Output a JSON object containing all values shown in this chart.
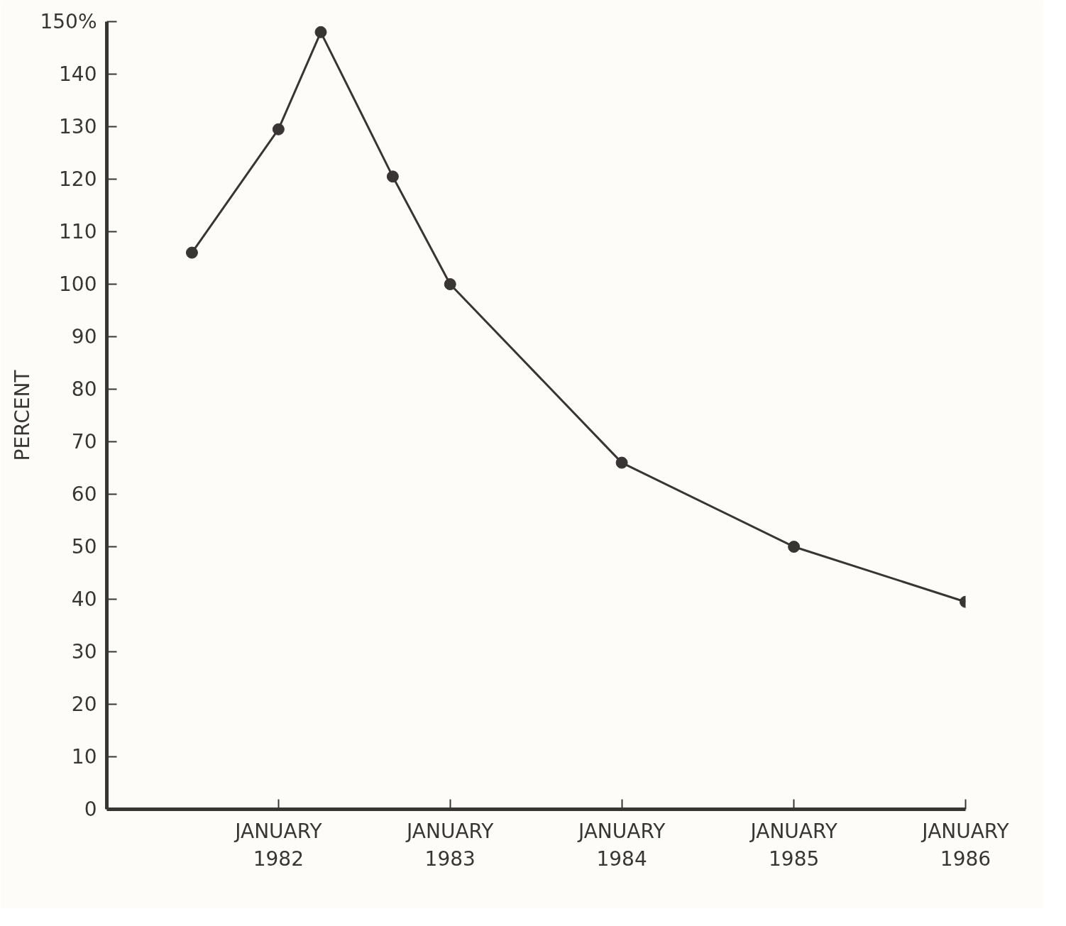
{
  "chart_data": {
    "type": "line",
    "ylabel": "PERCENT",
    "x": [
      "1981-07",
      "1982-01",
      "1982-04",
      "1982-09",
      "1983-01",
      "1984-01",
      "1985-01",
      "1986-01"
    ],
    "values": [
      106,
      129.5,
      148,
      120.5,
      100,
      66,
      50,
      39.5
    ],
    "color": "#3a3535",
    "marker": "circle",
    "line_style": "solid",
    "grid": false,
    "xlim": [
      "1981-01",
      "1986-01"
    ],
    "xticks": [
      {
        "value": "1982-01",
        "label": "JANUARY\n1982"
      },
      {
        "value": "1983-01",
        "label": "JANUARY\n1983"
      },
      {
        "value": "1984-01",
        "label": "JANUARY\n1984"
      },
      {
        "value": "1985-01",
        "label": "JANUARY\n1985"
      },
      {
        "value": "1986-01",
        "label": "JANUARY\n1986"
      }
    ],
    "ylim": [
      0,
      150
    ],
    "yticks": [
      0,
      10,
      20,
      30,
      40,
      50,
      60,
      70,
      80,
      90,
      100,
      110,
      120,
      130,
      140,
      {
        "value": 150,
        "label": "150%"
      }
    ]
  }
}
